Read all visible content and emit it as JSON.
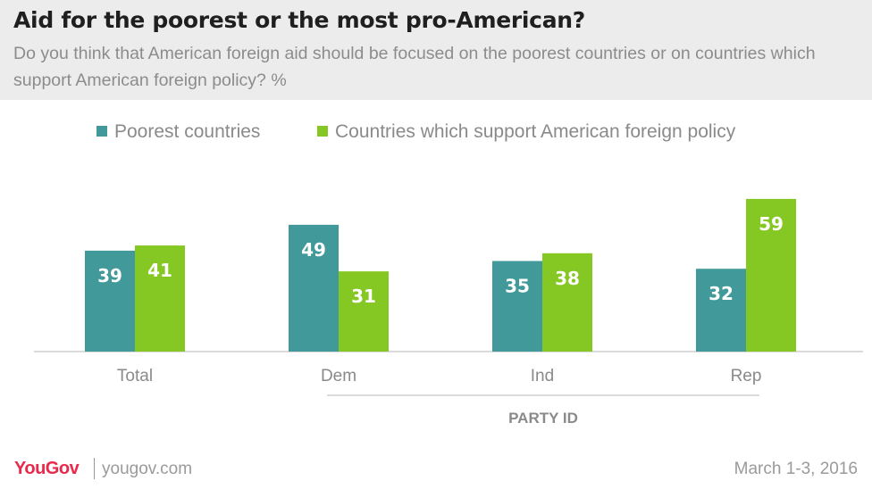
{
  "header": {
    "title": "Aid for the poorest or the most pro-American?",
    "subtitle": "Do you think that American foreign aid should be focused on the poorest countries or on countries which support American foreign policy? %"
  },
  "chart_data": {
    "type": "bar",
    "title": "Aid for the poorest or the most pro-American?",
    "categories": [
      "Total",
      "Dem",
      "Ind",
      "Rep"
    ],
    "group_label": "PARTY ID",
    "series": [
      {
        "name": "Poorest countries",
        "values": [
          39,
          49,
          35,
          32
        ],
        "color": "#41999a"
      },
      {
        "name": "Countries which support American foreign policy",
        "values": [
          41,
          31,
          38,
          59
        ],
        "color": "#86c823"
      }
    ],
    "ylim": [
      0,
      60
    ],
    "grid": false,
    "legend_position": "top"
  },
  "footer": {
    "brand": "YouGov",
    "site": "yougov.com",
    "date": "March 1-3, 2016"
  },
  "colors": {
    "brand": "#e8294b",
    "header_bg": "#ececec"
  }
}
